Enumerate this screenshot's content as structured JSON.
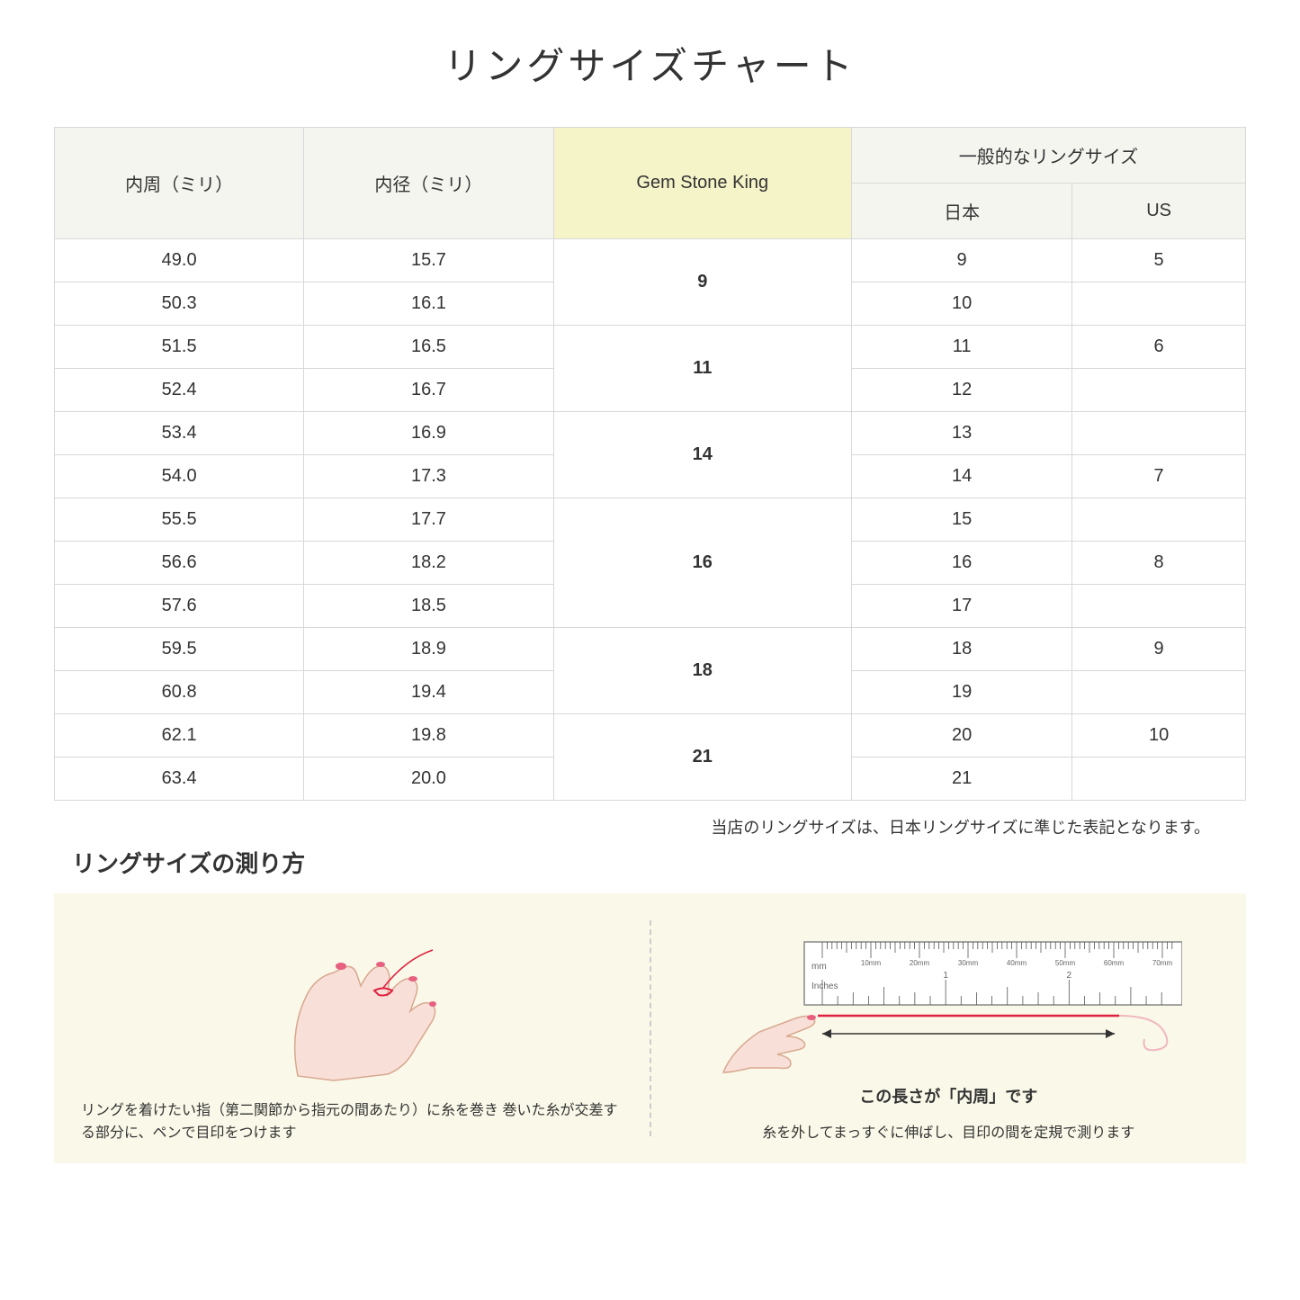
{
  "title": "リングサイズチャート",
  "table": {
    "headers": {
      "col1": "内周（ミリ）",
      "col2": "内径（ミリ）",
      "col3": "Gem Stone King",
      "general": "一般的なリングサイズ",
      "japan": "日本",
      "us": "US"
    },
    "rows": [
      {
        "circ": "49.0",
        "diam": "15.7",
        "gsk": "9",
        "gsk_span": 2,
        "jp": "9",
        "us": "5"
      },
      {
        "circ": "50.3",
        "diam": "16.1",
        "jp": "10",
        "us": ""
      },
      {
        "circ": "51.5",
        "diam": "16.5",
        "gsk": "11",
        "gsk_span": 2,
        "jp": "11",
        "us": "6"
      },
      {
        "circ": "52.4",
        "diam": "16.7",
        "jp": "12",
        "us": ""
      },
      {
        "circ": "53.4",
        "diam": "16.9",
        "gsk": "14",
        "gsk_span": 2,
        "jp": "13",
        "us": ""
      },
      {
        "circ": "54.0",
        "diam": "17.3",
        "jp": "14",
        "us": "7"
      },
      {
        "circ": "55.5",
        "diam": "17.7",
        "gsk": "16",
        "gsk_span": 3,
        "jp": "15",
        "us": ""
      },
      {
        "circ": "56.6",
        "diam": "18.2",
        "jp": "16",
        "us": "8"
      },
      {
        "circ": "57.6",
        "diam": "18.5",
        "jp": "17",
        "us": ""
      },
      {
        "circ": "59.5",
        "diam": "18.9",
        "gsk": "18",
        "gsk_span": 2,
        "jp": "18",
        "us": "9"
      },
      {
        "circ": "60.8",
        "diam": "19.4",
        "jp": "19",
        "us": ""
      },
      {
        "circ": "62.1",
        "diam": "19.8",
        "gsk": "21",
        "gsk_span": 2,
        "jp": "20",
        "us": "10"
      },
      {
        "circ": "63.4",
        "diam": "20.0",
        "jp": "21",
        "us": ""
      }
    ]
  },
  "footnote": "当店のリングサイズは、日本リングサイズに準じた表記となります。",
  "howto": {
    "title": "リングサイズの測り方",
    "left_text": "リングを着けたい指（第二関節から指元の間あたり）に糸を巻き\n巻いた糸が交差する部分に、ペンで目印をつけます",
    "right_label": "この長さが「内周」です",
    "right_text": "糸を外してまっすぐに伸ばし、目印の間を定規で測ります",
    "ruler": {
      "mm_label": "mm",
      "inches_label": "Inches",
      "mm_marks": [
        "10mm",
        "20mm",
        "30mm",
        "40mm",
        "50mm",
        "60mm",
        "70mm"
      ],
      "inch_marks": [
        "1",
        "2"
      ]
    }
  },
  "colors": {
    "header_plain": "#f5f5f0",
    "header_highlight": "#f5f3c8",
    "howto_bg": "#faf8e8",
    "border": "#d8d8d8",
    "hand_fill": "#f8e0d8",
    "hand_stroke": "#d8a890",
    "nail": "#e86080",
    "thread": "#e02040",
    "ruler_body": "#ffffff",
    "ruler_stroke": "#888888"
  }
}
